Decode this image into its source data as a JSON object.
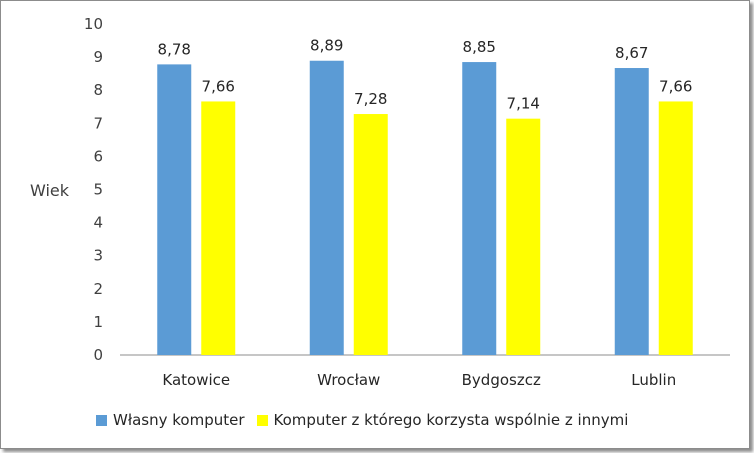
{
  "chart_data": {
    "type": "bar",
    "categories": [
      "Katowice",
      "Wrocław",
      "Bydgoszcz",
      "Lublin"
    ],
    "series": [
      {
        "name": "Własny komputer",
        "color": "#5b9bd5",
        "values": [
          8.78,
          8.89,
          8.85,
          8.67
        ],
        "labels": [
          "8,78",
          "8,89",
          "8,85",
          "8,67"
        ]
      },
      {
        "name": "Komputer z którego korzysta wspólnie z innymi",
        "color": "#ffff00",
        "values": [
          7.66,
          7.28,
          7.14,
          7.66
        ],
        "labels": [
          "7,66",
          "7,28",
          "7,14",
          "7,66"
        ]
      }
    ],
    "ylabel": "Wiek",
    "ylim": [
      0,
      10
    ],
    "yticks": [
      "0",
      "1",
      "2",
      "3",
      "4",
      "5",
      "6",
      "7",
      "8",
      "9",
      "10"
    ],
    "grid": false,
    "legend_position": "bottom"
  }
}
